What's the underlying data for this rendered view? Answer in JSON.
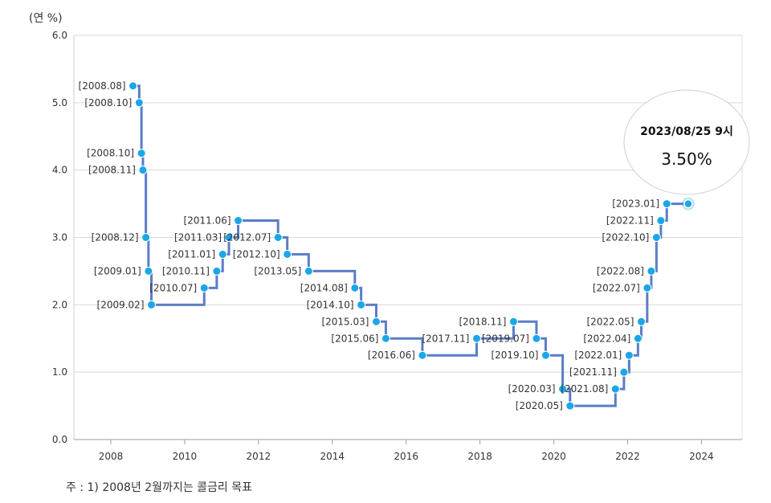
{
  "chart_data": {
    "type": "line",
    "step": true,
    "y_unit_label": "(연 %)",
    "footnote": "주 : 1) 2008년 2월까지는 콜금리 목표",
    "ylim": [
      0,
      6
    ],
    "yticks": [
      "0.0",
      "1.0",
      "2.0",
      "3.0",
      "4.0",
      "5.0",
      "6.0"
    ],
    "xlim": [
      2007.0,
      2025.1
    ],
    "xticks": [
      "2008",
      "2010",
      "2012",
      "2014",
      "2016",
      "2018",
      "2020",
      "2022",
      "2024"
    ],
    "grid": true,
    "series": [
      {
        "color": "#5b7dc6",
        "marker_color": "#1aa7e8",
        "points": [
          {
            "label": "[2008.08]",
            "x": 2008.6,
            "y": 5.25
          },
          {
            "label": "[2008.10]",
            "x": 2008.77,
            "y": 5.0
          },
          {
            "label": "[2008.10]",
            "x": 2008.83,
            "y": 4.25
          },
          {
            "label": "[2008.11]",
            "x": 2008.87,
            "y": 4.0
          },
          {
            "label": "[2008.12]",
            "x": 2008.95,
            "y": 3.0
          },
          {
            "label": "[2009.01]",
            "x": 2009.02,
            "y": 2.5
          },
          {
            "label": "[2009.02]",
            "x": 2009.1,
            "y": 2.0
          },
          {
            "label": "[2010.07]",
            "x": 2010.53,
            "y": 2.25
          },
          {
            "label": "[2010.11]",
            "x": 2010.87,
            "y": 2.5
          },
          {
            "label": "[2011.01]",
            "x": 2011.03,
            "y": 2.75
          },
          {
            "label": "[2011.03]",
            "x": 2011.2,
            "y": 3.0
          },
          {
            "label": "[2011.06]",
            "x": 2011.45,
            "y": 3.25
          },
          {
            "label": "[2012.07]",
            "x": 2012.53,
            "y": 3.0
          },
          {
            "label": "[2012.10]",
            "x": 2012.78,
            "y": 2.75
          },
          {
            "label": "[2013.05]",
            "x": 2013.36,
            "y": 2.5
          },
          {
            "label": "[2014.08]",
            "x": 2014.61,
            "y": 2.25
          },
          {
            "label": "[2014.10]",
            "x": 2014.78,
            "y": 2.0
          },
          {
            "label": "[2015.03]",
            "x": 2015.19,
            "y": 1.75
          },
          {
            "label": "[2015.06]",
            "x": 2015.45,
            "y": 1.5
          },
          {
            "label": "[2016.06]",
            "x": 2016.44,
            "y": 1.25
          },
          {
            "label": "[2017.11]",
            "x": 2017.91,
            "y": 1.5
          },
          {
            "label": "[2018.11]",
            "x": 2018.91,
            "y": 1.75
          },
          {
            "label": "[2019.07]",
            "x": 2019.53,
            "y": 1.5
          },
          {
            "label": "[2019.10]",
            "x": 2019.78,
            "y": 1.25
          },
          {
            "label": "[2020.03]",
            "x": 2020.24,
            "y": 0.75
          },
          {
            "label": "[2020.05]",
            "x": 2020.44,
            "y": 0.5
          },
          {
            "label": "[2021.08]",
            "x": 2021.67,
            "y": 0.75
          },
          {
            "label": "[2021.11]",
            "x": 2021.9,
            "y": 1.0
          },
          {
            "label": "[2022.01]",
            "x": 2022.04,
            "y": 1.25
          },
          {
            "label": "[2022.04]",
            "x": 2022.28,
            "y": 1.5
          },
          {
            "label": "[2022.05]",
            "x": 2022.37,
            "y": 1.75
          },
          {
            "label": "[2022.07]",
            "x": 2022.53,
            "y": 2.25
          },
          {
            "label": "[2022.08]",
            "x": 2022.64,
            "y": 2.5
          },
          {
            "label": "[2022.10]",
            "x": 2022.78,
            "y": 3.0
          },
          {
            "label": "[2022.11]",
            "x": 2022.9,
            "y": 3.25
          },
          {
            "label": "[2023.01]",
            "x": 2023.06,
            "y": 3.5
          },
          {
            "label": "",
            "x": 2023.64,
            "y": 3.5
          }
        ]
      }
    ],
    "tooltip": {
      "date": "2023/08/25 9시",
      "value": "3.50%"
    }
  }
}
